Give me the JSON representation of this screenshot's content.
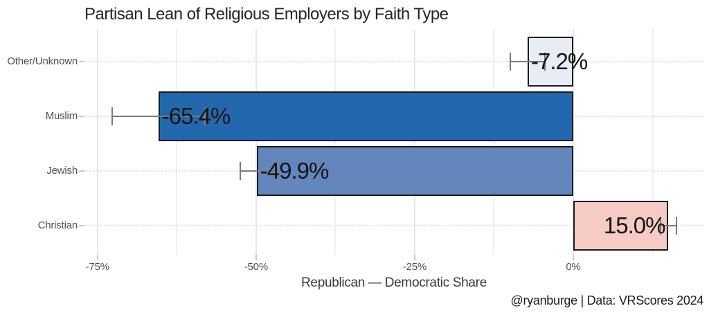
{
  "attribution": "@ryanburge | Data: VRScores 2024",
  "chart_data": {
    "type": "bar",
    "orientation": "horizontal",
    "title": "Partisan Lean of Religious Employers by Faith Type",
    "xlabel": "Republican — Democratic Share",
    "ylabel": "",
    "xlim": [
      -77.05,
      20.52
    ],
    "xticks": [
      -75,
      -50,
      -25,
      0
    ],
    "xtick_labels": [
      "-75%",
      "-50%",
      "-25%",
      "0%"
    ],
    "minor_xticks": [
      -62.5,
      -37.5,
      -12.5,
      12.5
    ],
    "grid": true,
    "legend_position": "none",
    "bar_border_color": "#1a1a1a",
    "error_bar_color": "#7a7a7a",
    "rows": [
      {
        "category": "Other/Unknown",
        "value": -7.2,
        "label": "-7.2%",
        "fill": "#e8ecf5",
        "error_low": -9.9,
        "error_high": -4.5
      },
      {
        "category": "Muslim",
        "value": -65.4,
        "label": "-65.4%",
        "fill": "#2368ad",
        "error_low": -72.7,
        "error_high": -58.1
      },
      {
        "category": "Jewish",
        "value": -49.9,
        "label": "-49.9%",
        "fill": "#6386bd",
        "error_low": -52.5,
        "error_high": -47.3
      },
      {
        "category": "Christian",
        "value": 15.0,
        "label": "15.0%",
        "fill": "#f5cbc4",
        "error_low": 13.7,
        "error_high": 16.3
      }
    ]
  }
}
